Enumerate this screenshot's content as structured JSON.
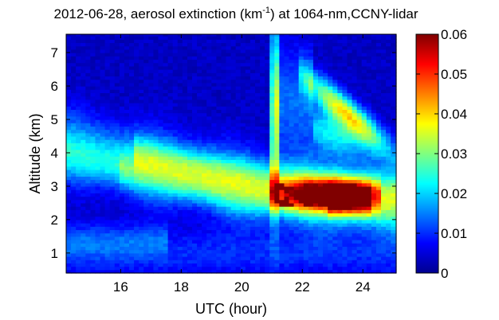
{
  "chart_data": {
    "type": "heatmap",
    "title": {
      "prefix": "2012-06-28, aerosol extinction (km",
      "superscript": "-1",
      "suffix": ") at 1064-nm,CCNY-lidar"
    },
    "xlabel": "UTC (hour)",
    "ylabel": "Altitude (km)",
    "xlim": [
      14.2,
      25.1
    ],
    "ylim": [
      0.4,
      7.55
    ],
    "x_ticks": [
      "16",
      "18",
      "20",
      "22",
      "24"
    ],
    "y_ticks": [
      "1",
      "2",
      "3",
      "4",
      "5",
      "6",
      "7"
    ],
    "colorbar": {
      "colormap": "jet",
      "range": [
        0,
        0.06
      ],
      "ticks": [
        "0",
        "0.01",
        "0.02",
        "0.03",
        "0.04",
        "0.05",
        "0.06"
      ]
    },
    "grid": false,
    "features": [
      {
        "name": "background",
        "value": 0.004
      },
      {
        "name": "aerosol-layer-lower",
        "value": 0.016
      },
      {
        "name": "aerosol-layer-core",
        "value": 0.034
      },
      {
        "name": "dense-plume-21-24h",
        "value": 0.058
      },
      {
        "name": "cloud-plume-upper",
        "value": 0.042
      }
    ]
  }
}
